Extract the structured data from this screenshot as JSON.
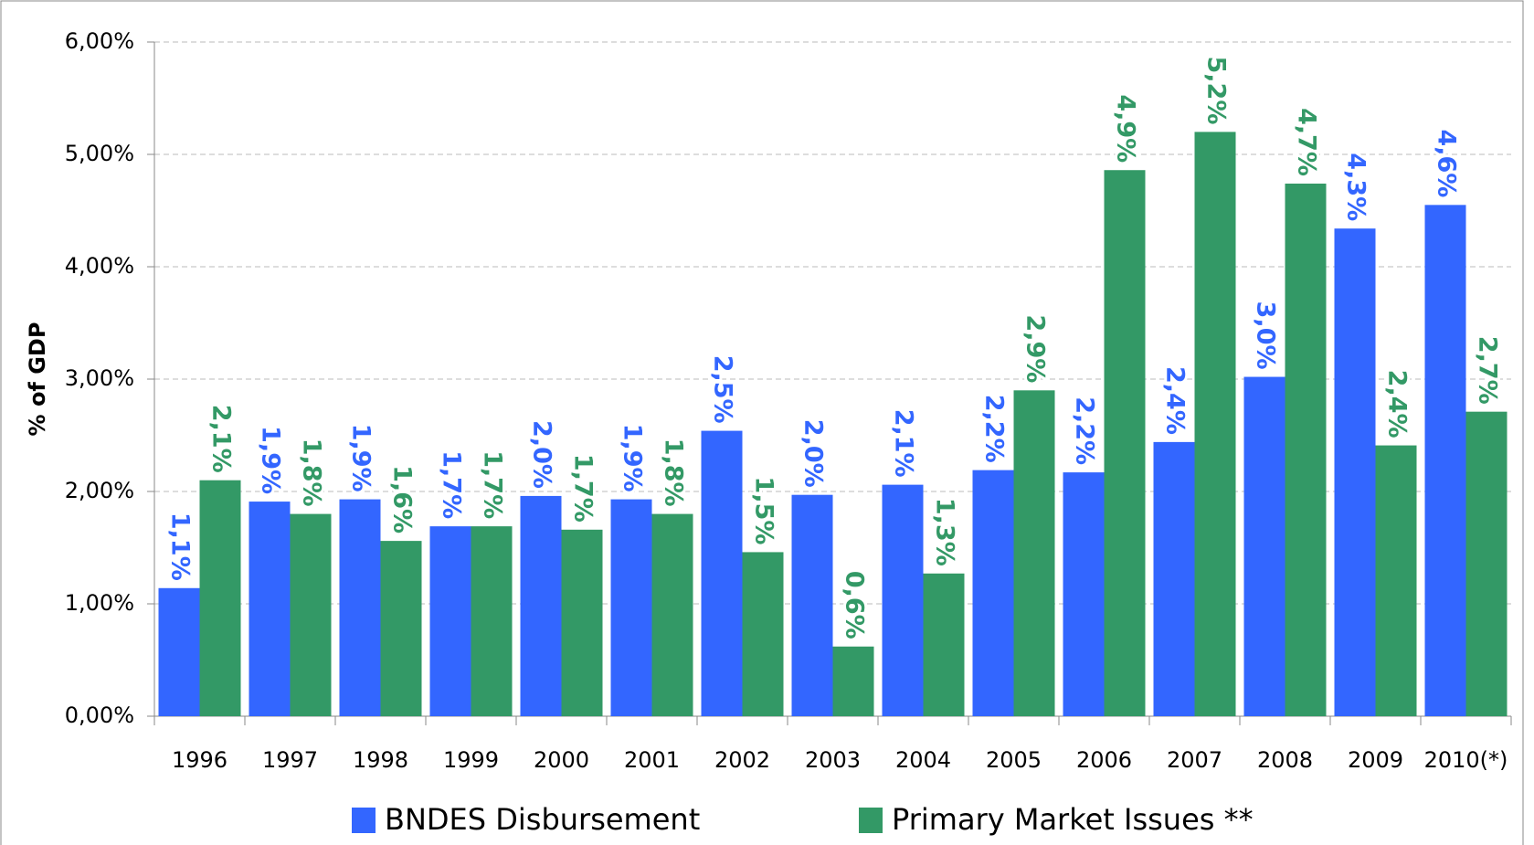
{
  "chart_data": {
    "type": "bar",
    "y_label": "% of GDP",
    "categories": [
      "1996",
      "1997",
      "1998",
      "1999",
      "2000",
      "2001",
      "2002",
      "2003",
      "2004",
      "2005",
      "2006",
      "2007",
      "2008",
      "2009",
      "2010(*)"
    ],
    "series": [
      {
        "name": "BNDES Disbursement",
        "color": "#3366ff",
        "values": [
          1.14,
          1.91,
          1.93,
          1.69,
          1.96,
          1.93,
          2.54,
          1.97,
          2.06,
          2.19,
          2.17,
          2.44,
          3.02,
          4.34,
          4.55
        ],
        "value_labels": [
          "1,1%",
          "1,9%",
          "1,9%",
          "1,7%",
          "2,0%",
          "1,9%",
          "2,5%",
          "2,0%",
          "2,1%",
          "2,2%",
          "2,2%",
          "2,4%",
          "3,0%",
          "4,3%",
          "4,6%"
        ]
      },
      {
        "name": "Primary Market Issues **",
        "color": "#339966",
        "values": [
          2.1,
          1.8,
          1.56,
          1.69,
          1.66,
          1.8,
          1.46,
          0.62,
          1.27,
          2.9,
          4.86,
          5.2,
          4.74,
          2.41,
          2.71
        ],
        "value_labels": [
          "2,1%",
          "1,8%",
          "1,6%",
          "1,7%",
          "1,7%",
          "1,8%",
          "1,5%",
          "0,6%",
          "1,3%",
          "2,9%",
          "4,9%",
          "5,2%",
          "4,7%",
          "2,4%",
          "2,7%"
        ]
      }
    ],
    "ylim": [
      0,
      6
    ],
    "yticks": [
      {
        "value": 0,
        "label": "0,00%"
      },
      {
        "value": 1,
        "label": "1,00%"
      },
      {
        "value": 2,
        "label": "2,00%"
      },
      {
        "value": 3,
        "label": "3,00%"
      },
      {
        "value": 4,
        "label": "4,00%"
      },
      {
        "value": 5,
        "label": "5,00%"
      },
      {
        "value": 6,
        "label": "6,00%"
      }
    ],
    "grid": true,
    "legend": "bottom"
  }
}
